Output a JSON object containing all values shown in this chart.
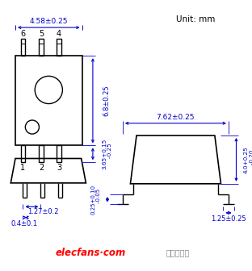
{
  "unit_text": "Unit: mm",
  "background_color": "#ffffff",
  "line_color": "#000000",
  "dim_color": "#0000cd",
  "watermark_color": "#ff0000",
  "watermark_text": "elecfans·com",
  "watermark_text2": "电子发烧友",
  "dim_width_top": "4.58±0.25",
  "dim_height_body": "6.8±0.25",
  "dim_leg": "3.65+0.15\n    -0.25",
  "dim_pin_pitch": "1.27±0.2",
  "dim_pin_width": "0.4±0.1",
  "dim_side_width": "7.62±0.25",
  "dim_side_height": "4.0+0.25\n   -0.20",
  "dim_pin_bend": "0.25+0.10\n    -0.05",
  "dim_pin_len": "1.25±0.25"
}
